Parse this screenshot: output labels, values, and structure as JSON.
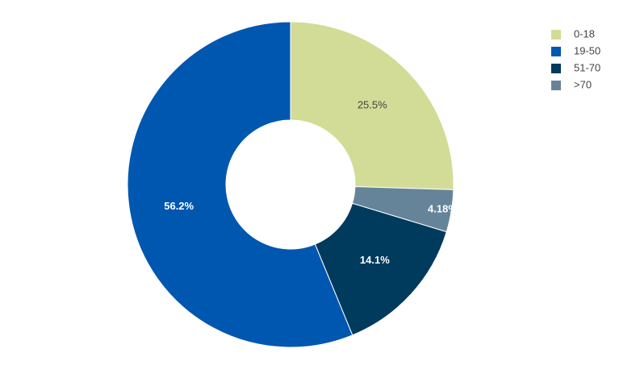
{
  "chart_data": {
    "type": "pie",
    "hole": true,
    "direction": "counterclockwise",
    "categories": [
      "0-18",
      "19-50",
      "51-70",
      ">70"
    ],
    "values": [
      25.5,
      56.2,
      14.1,
      4.18
    ],
    "value_labels": [
      "25.5%",
      "56.2%",
      "14.1%",
      "4.18%"
    ],
    "colors": [
      "#d2dc96",
      "#0057b0",
      "#003a5d",
      "#668499"
    ],
    "label_colors": [
      "#444444",
      "#ffffff",
      "#ffffff",
      "#ffffff"
    ],
    "legend": "top-right"
  }
}
